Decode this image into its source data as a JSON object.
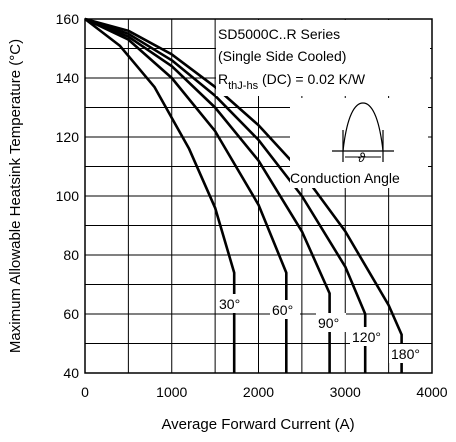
{
  "chart_data": {
    "type": "line",
    "title": "",
    "xlabel": "Average Forward Current (A)",
    "ylabel": "Maximum Allowable Heatsink Temperature (°C)",
    "xlim": [
      0,
      4000
    ],
    "ylim": [
      40,
      160
    ],
    "x_ticks": [
      "0",
      "1000",
      "2000",
      "3000",
      "4000"
    ],
    "y_ticks": [
      "40",
      "60",
      "80",
      "100",
      "120",
      "140",
      "160"
    ],
    "grid": true,
    "annotations": {
      "series_title": "SD5000C..R Series",
      "cooling": "(Single Side Cooled)",
      "rth_prefix": "R",
      "rth_sub": "thJ-hs",
      "rth_suffix": " (DC) = 0.02 K/W",
      "inset_label": "Conduction Angle",
      "inset_symbol": "ϑ"
    },
    "series": [
      {
        "name": "30°",
        "x": [
          0,
          400,
          800,
          1200,
          1500,
          1720,
          1720
        ],
        "y": [
          160,
          151,
          137,
          116,
          96,
          74,
          40
        ]
      },
      {
        "name": "60°",
        "x": [
          0,
          500,
          1000,
          1500,
          2000,
          2320,
          2320
        ],
        "y": [
          160,
          153,
          140,
          122,
          97,
          74,
          40
        ]
      },
      {
        "name": "90°",
        "x": [
          0,
          500,
          1000,
          1500,
          2000,
          2500,
          2820,
          2820
        ],
        "y": [
          160,
          154,
          144,
          130,
          112,
          88,
          67,
          40
        ]
      },
      {
        "name": "120°",
        "x": [
          0,
          500,
          1000,
          1500,
          2000,
          2500,
          3000,
          3230,
          3230
        ],
        "y": [
          160,
          155,
          146,
          134,
          119,
          100,
          76,
          60,
          40
        ]
      },
      {
        "name": "180°",
        "x": [
          0,
          500,
          1000,
          1500,
          2000,
          2500,
          3000,
          3500,
          3650,
          3650
        ],
        "y": [
          160,
          156,
          148,
          137,
          124,
          108,
          88,
          63,
          53,
          40
        ]
      }
    ],
    "series_labels": [
      "30°",
      "60°",
      "90°",
      "120°",
      "180°"
    ]
  }
}
